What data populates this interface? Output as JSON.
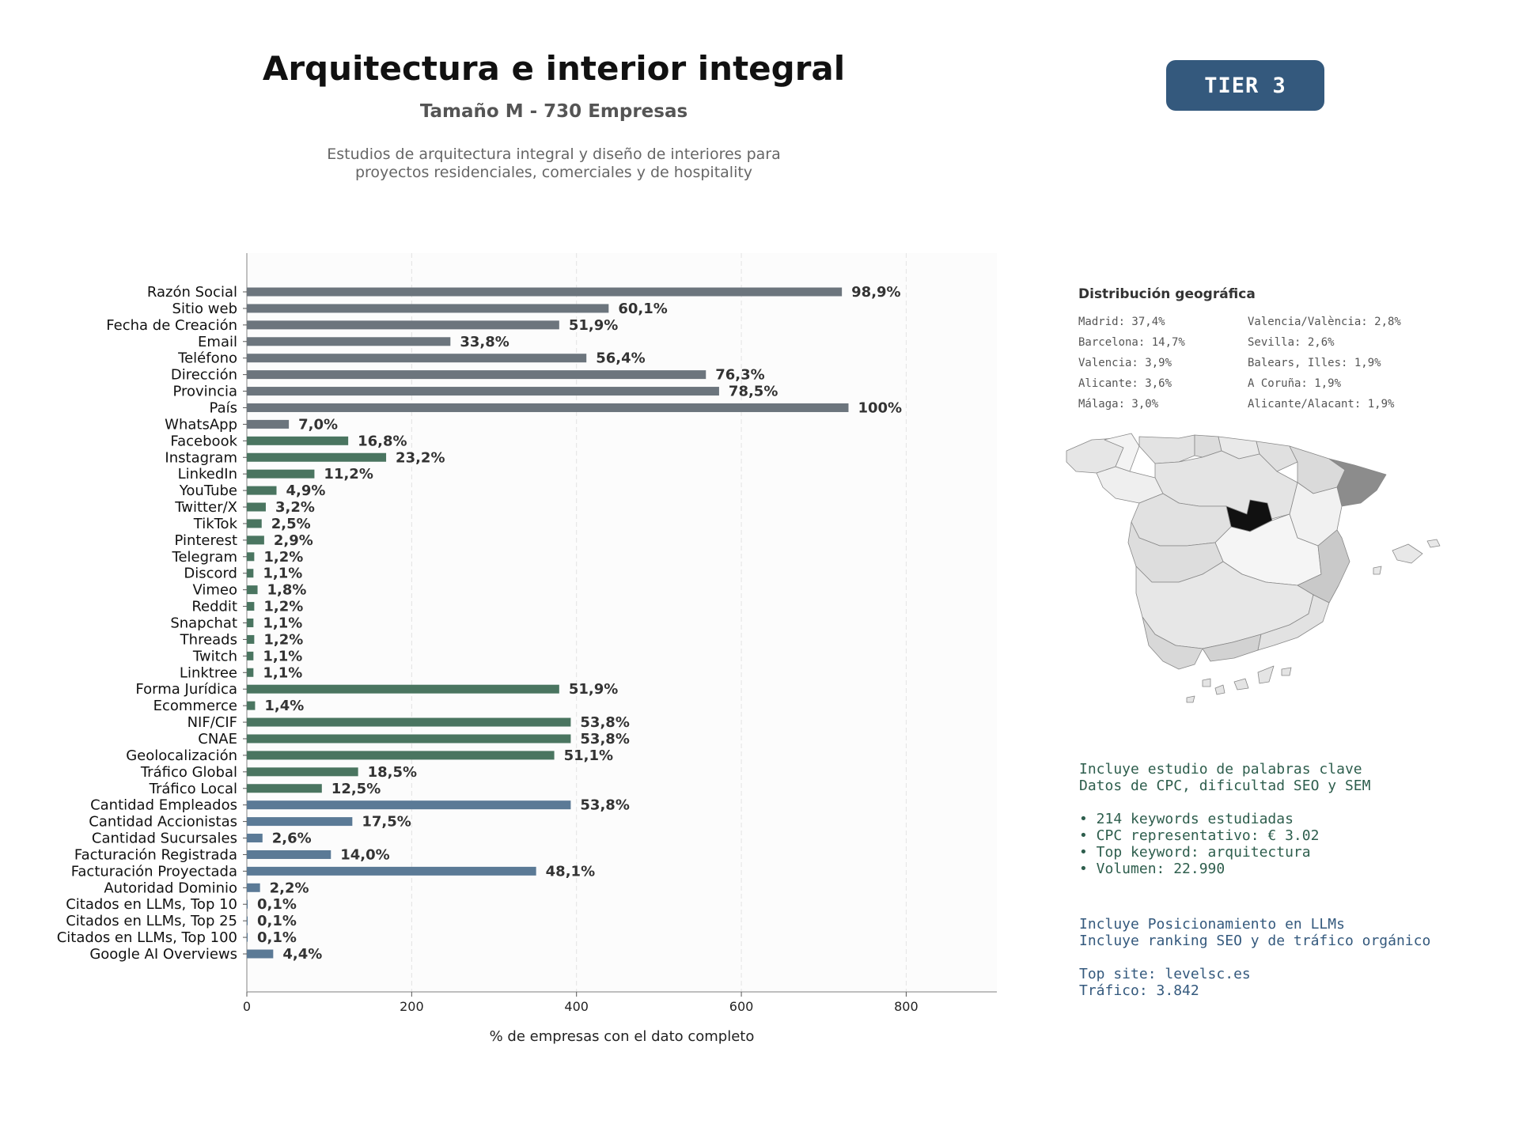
{
  "header": {
    "title": "Arquitectura e interior integral",
    "subtitle": "Tamaño M - 730 Empresas",
    "description_line1": "Estudios de arquitectura integral y diseño de interiores para",
    "description_line2": "proyectos residenciales, comerciales y de hospitality",
    "tier": "TIER 3"
  },
  "chart_data": {
    "type": "bar",
    "orientation": "horizontal",
    "xlabel": "% de empresas con el dato completo",
    "ylabel": "",
    "xlim": [
      0,
      910
    ],
    "xticks": [
      0,
      200,
      400,
      600,
      800
    ],
    "grid": "vertical-dashed",
    "categories": [
      "Razón Social",
      "Sitio web",
      "Fecha de Creación",
      "Email",
      "Teléfono",
      "Dirección",
      "Provincia",
      "País",
      "WhatsApp",
      "Facebook",
      "Instagram",
      "LinkedIn",
      "YouTube",
      "Twitter/X",
      "TikTok",
      "Pinterest",
      "Telegram",
      "Discord",
      "Vimeo",
      "Reddit",
      "Snapchat",
      "Threads",
      "Twitch",
      "Linktree",
      "Forma Jurídica",
      "Ecommerce",
      "NIF/CIF",
      "CNAE",
      "Geolocalización",
      "Tráfico Global",
      "Tráfico Local",
      "Cantidad Empleados",
      "Cantidad Accionistas",
      "Cantidad Sucursales",
      "Facturación Registrada",
      "Facturación Proyectada",
      "Autoridad Dominio",
      "Citados en LLMs, Top 10",
      "Citados en LLMs, Top 25",
      "Citados en LLMs, Top 100",
      "Google AI Overviews"
    ],
    "values": [
      722,
      439,
      379,
      247,
      412,
      557,
      573,
      730,
      51,
      123,
      169,
      82,
      36,
      23,
      18,
      21,
      9,
      8,
      13,
      9,
      8,
      9,
      8,
      8,
      379,
      10,
      393,
      393,
      373,
      135,
      91,
      393,
      128,
      19,
      102,
      351,
      16,
      1,
      1,
      1,
      32
    ],
    "labels": [
      "98,9%",
      "60,1%",
      "51,9%",
      "33,8%",
      "56,4%",
      "76,3%",
      "78,5%",
      "100%",
      "7,0%",
      "16,8%",
      "23,2%",
      "11,2%",
      "4,9%",
      "3,2%",
      "2,5%",
      "2,9%",
      "1,2%",
      "1,1%",
      "1,8%",
      "1,2%",
      "1,1%",
      "1,2%",
      "1,1%",
      "1,1%",
      "51,9%",
      "1,4%",
      "53,8%",
      "53,8%",
      "51,1%",
      "18,5%",
      "12,5%",
      "53,8%",
      "17,5%",
      "2,6%",
      "14,0%",
      "48,1%",
      "2,2%",
      "0,1%",
      "0,1%",
      "0,1%",
      "4,4%"
    ],
    "groups": [
      "basic",
      "basic",
      "basic",
      "basic",
      "basic",
      "basic",
      "basic",
      "basic",
      "basic",
      "social",
      "social",
      "social",
      "social",
      "social",
      "social",
      "social",
      "social",
      "social",
      "social",
      "social",
      "social",
      "social",
      "social",
      "social",
      "social",
      "social",
      "social",
      "social",
      "social",
      "social",
      "social",
      "finance",
      "finance",
      "finance",
      "finance",
      "finance",
      "finance",
      "finance",
      "finance",
      "finance",
      "finance"
    ],
    "colors": {
      "basic": "#6c757d",
      "social": "#4a7560",
      "finance": "#5b7a96"
    }
  },
  "geo": {
    "title": "Distribución geográfica",
    "items": [
      "Madrid: 37,4%",
      "Valencia/València: 2,8%",
      "Barcelona: 14,7%",
      "Sevilla: 2,6%",
      "Valencia: 3,9%",
      "Balears, Illes: 1,9%",
      "Alicante: 3,6%",
      "A Coruña: 1,9%",
      "Málaga: 3,0%",
      "Alicante/Alacant: 1,9%"
    ]
  },
  "keywords": {
    "line1": "Incluye estudio de palabras clave",
    "line2": "Datos de CPC, dificultad SEO y SEM",
    "b1": "• 214 keywords estudiadas",
    "b2": "• CPC representativo: € 3.02",
    "b3": "• Top keyword: arquitectura",
    "b4": "• Volumen: 22.990"
  },
  "llm": {
    "line1": "Incluye Posicionamiento en LLMs",
    "line2": "Incluye ranking SEO y de tráfico orgánico",
    "site": "Top site: levelsc.es",
    "traffic": "Tráfico: 3.842"
  }
}
